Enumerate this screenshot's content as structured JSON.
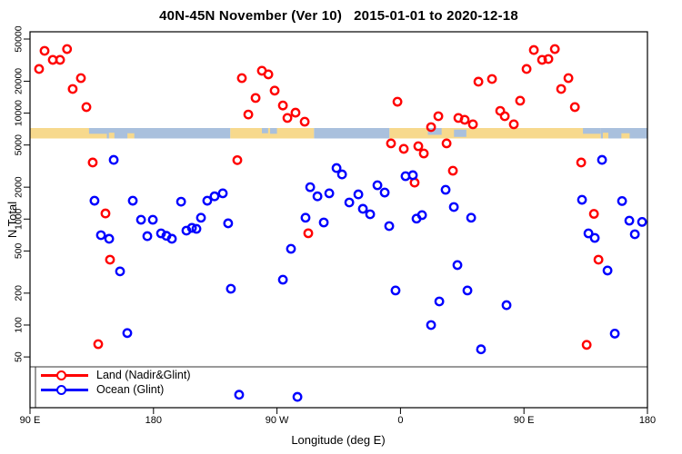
{
  "title": "40N-45N November (Ver 10)   2015-01-01 to 2020-12-18",
  "chart_data": {
    "type": "scatter",
    "title": "40N-45N November (Ver 10)   2015-01-01 to 2020-12-18",
    "xlabel": "Longitude (deg E)",
    "ylabel": "N Total",
    "x_scale": "linear-wrapped-longitude",
    "y_scale": "log",
    "x_range_deg": [
      90,
      540
    ],
    "y_axis_ticks": [
      50,
      100,
      200,
      500,
      1000,
      2000,
      5000,
      10000,
      20000,
      50000
    ],
    "x_ticks": [
      {
        "label": "90 E",
        "deg": 90
      },
      {
        "label": "180",
        "deg": 180
      },
      {
        "label": "90 W",
        "deg": 270
      },
      {
        "label": "0",
        "deg": 360
      },
      {
        "label": "90 E",
        "deg": 450
      },
      {
        "label": "180",
        "deg": 540
      }
    ],
    "legend": [
      {
        "label": "Land (Nadir&Glint)",
        "color": "#ff0000"
      },
      {
        "label": "Ocean (Glint)",
        "color": "#0000ff"
      }
    ],
    "map_strip": {
      "comment": "40N-45N latitude band of world map drawn as horizontal band",
      "n_range": [
        5800,
        7300
      ],
      "land_color": "#f7d98d",
      "ocean_color": "#a9c0dd",
      "segments": [
        {
          "from": 90,
          "to": 146,
          "type": "land"
        },
        {
          "from": 146,
          "to": 236,
          "type": "ocean"
        },
        {
          "from": 236,
          "to": 297,
          "type": "land"
        },
        {
          "from": 297,
          "to": 352,
          "type": "ocean"
        },
        {
          "from": 352,
          "to": 506,
          "type": "land"
        },
        {
          "from": 506,
          "to": 540,
          "type": "ocean"
        }
      ],
      "patches": [
        {
          "from": 133,
          "to": 146,
          "fy": 0,
          "fh": 0.55,
          "type": "ocean"
        },
        {
          "from": 147.5,
          "to": 151.5,
          "fy": 0.45,
          "fh": 0.55,
          "type": "land"
        },
        {
          "from": 161,
          "to": 166,
          "fy": 0.5,
          "fh": 0.5,
          "type": "land"
        },
        {
          "from": 259,
          "to": 263.5,
          "fy": 0,
          "fh": 0.5,
          "type": "ocean"
        },
        {
          "from": 265,
          "to": 270,
          "fy": 0,
          "fh": 0.55,
          "type": "ocean"
        },
        {
          "from": 380,
          "to": 390,
          "fy": 0,
          "fh": 0.65,
          "type": "ocean"
        },
        {
          "from": 399,
          "to": 408,
          "fy": 0.15,
          "fh": 0.7,
          "type": "ocean"
        },
        {
          "from": 493,
          "to": 506,
          "fy": 0,
          "fh": 0.55,
          "type": "ocean"
        },
        {
          "from": 507.5,
          "to": 511.5,
          "fy": 0.45,
          "fh": 0.55,
          "type": "land"
        },
        {
          "from": 521,
          "to": 527,
          "fy": 0.5,
          "fh": 0.5,
          "type": "land"
        }
      ]
    },
    "series": [
      {
        "name": "Land (Nadir&Glint)",
        "color": "#ff0000",
        "points": [
          [
            100.6,
            38700
          ],
          [
            117,
            40200
          ],
          [
            106.6,
            31800
          ],
          [
            111.9,
            31800
          ],
          [
            96.6,
            26100
          ],
          [
            127.1,
            21400
          ],
          [
            121.1,
            16900
          ],
          [
            131.1,
            11400
          ],
          [
            135.7,
            3420
          ],
          [
            145,
            1130
          ],
          [
            148.3,
            414
          ],
          [
            139.7,
            66
          ],
          [
            244.4,
            21400
          ],
          [
            259,
            25100
          ],
          [
            263.7,
            23200
          ],
          [
            254.4,
            13900
          ],
          [
            268.3,
            16300
          ],
          [
            249.1,
            9700
          ],
          [
            274.3,
            11800
          ],
          [
            277.6,
            9000
          ],
          [
            283.5,
            10100
          ],
          [
            290.2,
            8300
          ],
          [
            241.1,
            3600
          ],
          [
            292.8,
            735
          ],
          [
            357.8,
            12800
          ],
          [
            387.6,
            9350
          ],
          [
            382.3,
            7380
          ],
          [
            353.1,
            5180
          ],
          [
            362.4,
            4600
          ],
          [
            373,
            4870
          ],
          [
            377,
            4160
          ],
          [
            393.6,
            5180
          ],
          [
            402.2,
            9000
          ],
          [
            406.8,
            8650
          ],
          [
            412.8,
            7840
          ],
          [
            442.6,
            7840
          ],
          [
            398.2,
            2860
          ],
          [
            370.3,
            2210
          ],
          [
            416.8,
            19800
          ],
          [
            426.7,
            21000
          ],
          [
            447.2,
            13100
          ],
          [
            432.7,
            10500
          ],
          [
            436,
            9350
          ],
          [
            451.9,
            26100
          ],
          [
            457.2,
            39400
          ],
          [
            463.2,
            31800
          ],
          [
            467.8,
            32400
          ],
          [
            472.5,
            40200
          ],
          [
            482.4,
            21400
          ],
          [
            477.1,
            16900
          ],
          [
            487.1,
            11400
          ],
          [
            491.7,
            3420
          ],
          [
            501,
            1120
          ],
          [
            504.3,
            414
          ],
          [
            495.7,
            65
          ]
        ]
      },
      {
        "name": "Ocean (Glint)",
        "color": "#0000ff",
        "points": [
          [
            151,
            3620
          ],
          [
            137,
            1490
          ],
          [
            164.9,
            1490
          ],
          [
            141.7,
            705
          ],
          [
            147.7,
            652
          ],
          [
            155.6,
            321
          ],
          [
            160.9,
            84
          ],
          [
            170.9,
            985
          ],
          [
            175.5,
            690
          ],
          [
            179.5,
            985
          ],
          [
            185.5,
            733
          ],
          [
            189.4,
            695
          ],
          [
            193.4,
            652
          ],
          [
            200.1,
            1460
          ],
          [
            204,
            778
          ],
          [
            208,
            826
          ],
          [
            211.3,
            809
          ],
          [
            214.6,
            1030
          ],
          [
            219.2,
            1490
          ],
          [
            224.5,
            1640
          ],
          [
            230.5,
            1750
          ],
          [
            234.4,
            912
          ],
          [
            236.4,
            220
          ],
          [
            242.4,
            22
          ],
          [
            284.9,
            21
          ],
          [
            294.2,
            2000
          ],
          [
            299.5,
            1640
          ],
          [
            308.1,
            1750
          ],
          [
            290.8,
            1030
          ],
          [
            304.1,
            929
          ],
          [
            280.2,
            524
          ],
          [
            274.3,
            268
          ],
          [
            313.4,
            3030
          ],
          [
            317.4,
            2640
          ],
          [
            322.7,
            1435
          ],
          [
            329.3,
            1710
          ],
          [
            332.6,
            1250
          ],
          [
            337.9,
            1110
          ],
          [
            343.2,
            2085
          ],
          [
            348.5,
            1780
          ],
          [
            351.8,
            859
          ],
          [
            356.4,
            212
          ],
          [
            363.7,
            2540
          ],
          [
            369,
            2595
          ],
          [
            371.7,
            1010
          ],
          [
            375.7,
            1090
          ],
          [
            382.3,
            100
          ],
          [
            388.3,
            167
          ],
          [
            392.9,
            1890
          ],
          [
            398.9,
            1300
          ],
          [
            411.5,
            1030
          ],
          [
            401.5,
            368
          ],
          [
            408.8,
            212
          ],
          [
            418.7,
            59
          ],
          [
            437.3,
            154
          ],
          [
            506.9,
            3620
          ],
          [
            492.3,
            1520
          ],
          [
            521.5,
            1480
          ],
          [
            526.8,
            966
          ],
          [
            536.1,
            940
          ],
          [
            530.8,
            719
          ],
          [
            497,
            733
          ],
          [
            501.6,
            664
          ],
          [
            510.9,
            327
          ],
          [
            516.2,
            83
          ]
        ]
      }
    ]
  }
}
